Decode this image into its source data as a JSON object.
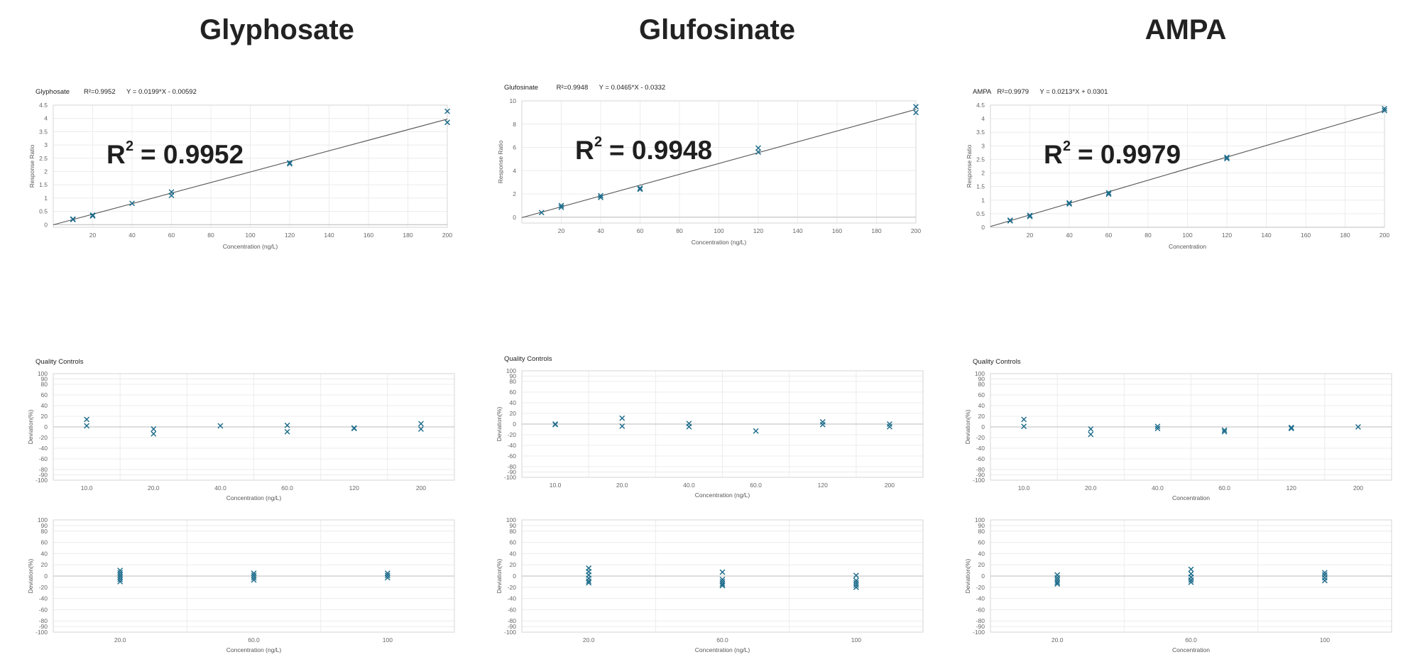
{
  "titles": [
    "Glyphosate",
    "Glufosinate",
    "AMPA"
  ],
  "chart_data": [
    {
      "type": "scatter",
      "header": {
        "name": "Glyphosate",
        "r2": "R²=0.9952",
        "eq": "Y = 0.0199*X - 0.00592"
      },
      "big_r2": {
        "prefix": "R",
        "sup": "2",
        "value": "= 0.9952"
      },
      "fit": {
        "slope": 0.0199,
        "intercept": -0.00592
      },
      "xlabel": "Concentration (ng/L)",
      "ylabel": "Response Ratio",
      "xlim": [
        0,
        200
      ],
      "ylim": [
        -0.1,
        4.5
      ],
      "xticks": [
        "20",
        "40",
        "60",
        "80",
        "100",
        "120",
        "140",
        "160",
        "180",
        "200"
      ],
      "yticks": [
        "0",
        "0.5",
        "1",
        "1.5",
        "2",
        "2.5",
        "3",
        "3.5",
        "4",
        "4.5"
      ],
      "points": [
        [
          10,
          0.19
        ],
        [
          10,
          0.21
        ],
        [
          20,
          0.33
        ],
        [
          20,
          0.36
        ],
        [
          40,
          0.8
        ],
        [
          60,
          1.1
        ],
        [
          60,
          1.23
        ],
        [
          120,
          2.29
        ],
        [
          120,
          2.33
        ],
        [
          200,
          3.85
        ],
        [
          200,
          4.27
        ]
      ]
    },
    {
      "type": "scatter",
      "header": {
        "name": "Glufosinate",
        "r2": "R²=0.9948",
        "eq": "Y = 0.0465*X - 0.0332"
      },
      "big_r2": {
        "prefix": "R",
        "sup": "2",
        "value": "= 0.9948"
      },
      "fit": {
        "slope": 0.0465,
        "intercept": -0.0332
      },
      "xlabel": "Concentration (ng/L)",
      "ylabel": "Response Ratio",
      "xlim": [
        0,
        200
      ],
      "ylim": [
        -0.5,
        10
      ],
      "xticks": [
        "20",
        "40",
        "60",
        "80",
        "100",
        "120",
        "140",
        "160",
        "180",
        "200"
      ],
      "yticks": [
        "0",
        "2",
        "4",
        "6",
        "8",
        "10"
      ],
      "points": [
        [
          10,
          0.4
        ],
        [
          20,
          0.85
        ],
        [
          20,
          1.0
        ],
        [
          40,
          1.7
        ],
        [
          40,
          1.85
        ],
        [
          60,
          2.4
        ],
        [
          60,
          2.5
        ],
        [
          120,
          5.6
        ],
        [
          120,
          5.95
        ],
        [
          200,
          9.0
        ],
        [
          200,
          9.5
        ]
      ]
    },
    {
      "type": "scatter",
      "header": {
        "name": "AMPA",
        "r2": "R²=0.9979",
        "eq": "Y = 0.0213*X + 0.0301"
      },
      "big_r2": {
        "prefix": "R",
        "sup": "2",
        "value": "= 0.9979"
      },
      "fit": {
        "slope": 0.0213,
        "intercept": 0.0301
      },
      "xlabel": "Concentration",
      "ylabel": "Response Ratio",
      "xlim": [
        0,
        200
      ],
      "ylim": [
        0,
        4.5
      ],
      "xticks": [
        "20",
        "40",
        "60",
        "80",
        "100",
        "120",
        "140",
        "160",
        "180",
        "200"
      ],
      "yticks": [
        "0",
        "0.5",
        "1",
        "1.5",
        "2",
        "2.5",
        "3",
        "3.5",
        "4",
        "4.5"
      ],
      "points": [
        [
          10,
          0.24
        ],
        [
          10,
          0.26
        ],
        [
          20,
          0.4
        ],
        [
          20,
          0.44
        ],
        [
          40,
          0.86
        ],
        [
          40,
          0.9
        ],
        [
          60,
          1.22
        ],
        [
          60,
          1.27
        ],
        [
          120,
          2.53
        ],
        [
          120,
          2.58
        ],
        [
          200,
          4.3
        ],
        [
          200,
          4.37
        ]
      ]
    },
    {
      "type": "scatter",
      "header": {
        "name": "Quality Controls"
      },
      "xlabel": "Concentration (ng/L)",
      "ylabel": "Deviation(%)",
      "ylim": [
        -100,
        100
      ],
      "categories": [
        "10.0",
        "20.0",
        "40.0",
        "60.0",
        "120",
        "200"
      ],
      "yticks": [
        "100",
        "90",
        "80",
        "60",
        "40",
        "20",
        "0",
        "-20",
        "-40",
        "-60",
        "-80",
        "-90",
        "-100"
      ],
      "points": [
        [
          0,
          14
        ],
        [
          0,
          2
        ],
        [
          1,
          -4
        ],
        [
          1,
          -13
        ],
        [
          2,
          2
        ],
        [
          3,
          3
        ],
        [
          3,
          -9
        ],
        [
          4,
          -3
        ],
        [
          4,
          -2
        ],
        [
          5,
          6
        ],
        [
          5,
          -4
        ]
      ]
    },
    {
      "type": "scatter",
      "header": {
        "name": "Quality Controls"
      },
      "xlabel": "Concentration (ng/L)",
      "ylabel": "Deviation(%)",
      "ylim": [
        -100,
        100
      ],
      "categories": [
        "10.0",
        "20.0",
        "40.0",
        "60.0",
        "120",
        "200"
      ],
      "yticks": [
        "100",
        "90",
        "80",
        "60",
        "40",
        "20",
        "0",
        "-20",
        "-40",
        "-60",
        "-80",
        "-90",
        "-100"
      ],
      "points": [
        [
          0,
          0
        ],
        [
          0,
          -1
        ],
        [
          1,
          11
        ],
        [
          1,
          -4
        ],
        [
          2,
          1
        ],
        [
          2,
          -5
        ],
        [
          3,
          -13
        ],
        [
          4,
          4
        ],
        [
          4,
          -1
        ],
        [
          5,
          0
        ],
        [
          5,
          -5
        ]
      ]
    },
    {
      "type": "scatter",
      "header": {
        "name": "Quality Controls"
      },
      "xlabel": "Concentration",
      "ylabel": "Deviation(%)",
      "ylim": [
        -100,
        100
      ],
      "categories": [
        "10.0",
        "20.0",
        "40.0",
        "60.0",
        "120",
        "200"
      ],
      "yticks": [
        "100",
        "90",
        "80",
        "60",
        "40",
        "20",
        "0",
        "-20",
        "-40",
        "-60",
        "-80",
        "-90",
        "-100"
      ],
      "points": [
        [
          0,
          14
        ],
        [
          0,
          1
        ],
        [
          1,
          -4
        ],
        [
          1,
          -14
        ],
        [
          2,
          1
        ],
        [
          2,
          -3
        ],
        [
          3,
          -6
        ],
        [
          3,
          -9
        ],
        [
          4,
          -1
        ],
        [
          4,
          -3
        ],
        [
          5,
          0
        ]
      ]
    },
    {
      "type": "scatter",
      "xlabel": "Concentration (ng/L)",
      "ylabel": "Deviation(%)",
      "ylim": [
        -100,
        100
      ],
      "categories": [
        "20.0",
        "60.0",
        "100"
      ],
      "yticks": [
        "100",
        "90",
        "80",
        "60",
        "40",
        "20",
        "0",
        "-20",
        "-40",
        "-60",
        "-80",
        "-90",
        "-100"
      ],
      "points": [
        [
          0,
          10
        ],
        [
          0,
          6
        ],
        [
          0,
          2
        ],
        [
          0,
          -2
        ],
        [
          0,
          -6
        ],
        [
          0,
          -10
        ],
        [
          1,
          5
        ],
        [
          1,
          1
        ],
        [
          1,
          -3
        ],
        [
          1,
          -7
        ],
        [
          2,
          5
        ],
        [
          2,
          1
        ],
        [
          2,
          -3
        ]
      ]
    },
    {
      "type": "scatter",
      "xlabel": "Concentration (ng/L)",
      "ylabel": "Deviation(%)",
      "ylim": [
        -100,
        100
      ],
      "categories": [
        "20.0",
        "60.0",
        "100"
      ],
      "yticks": [
        "100",
        "90",
        "80",
        "60",
        "40",
        "20",
        "0",
        "-20",
        "-40",
        "-60",
        "-80",
        "-90",
        "-100"
      ],
      "points": [
        [
          0,
          14
        ],
        [
          0,
          8
        ],
        [
          0,
          2
        ],
        [
          0,
          -4
        ],
        [
          0,
          -9
        ],
        [
          0,
          -12
        ],
        [
          1,
          7
        ],
        [
          1,
          -6
        ],
        [
          1,
          -10
        ],
        [
          1,
          -14
        ],
        [
          1,
          -17
        ],
        [
          2,
          1
        ],
        [
          2,
          -8
        ],
        [
          2,
          -12
        ],
        [
          2,
          -16
        ],
        [
          2,
          -20
        ]
      ]
    },
    {
      "type": "scatter",
      "xlabel": "Concentration",
      "ylabel": "Deviation(%)",
      "ylim": [
        -100,
        100
      ],
      "categories": [
        "20.0",
        "60.0",
        "100"
      ],
      "yticks": [
        "100",
        "90",
        "80",
        "60",
        "40",
        "20",
        "0",
        "-20",
        "-40",
        "-60",
        "-80",
        "-90",
        "-100"
      ],
      "points": [
        [
          0,
          2
        ],
        [
          0,
          -3
        ],
        [
          0,
          -7
        ],
        [
          0,
          -11
        ],
        [
          0,
          -14
        ],
        [
          1,
          12
        ],
        [
          1,
          4
        ],
        [
          1,
          -2
        ],
        [
          1,
          -7
        ],
        [
          1,
          -11
        ],
        [
          2,
          6
        ],
        [
          2,
          2
        ],
        [
          2,
          -3
        ],
        [
          2,
          -8
        ]
      ]
    }
  ]
}
